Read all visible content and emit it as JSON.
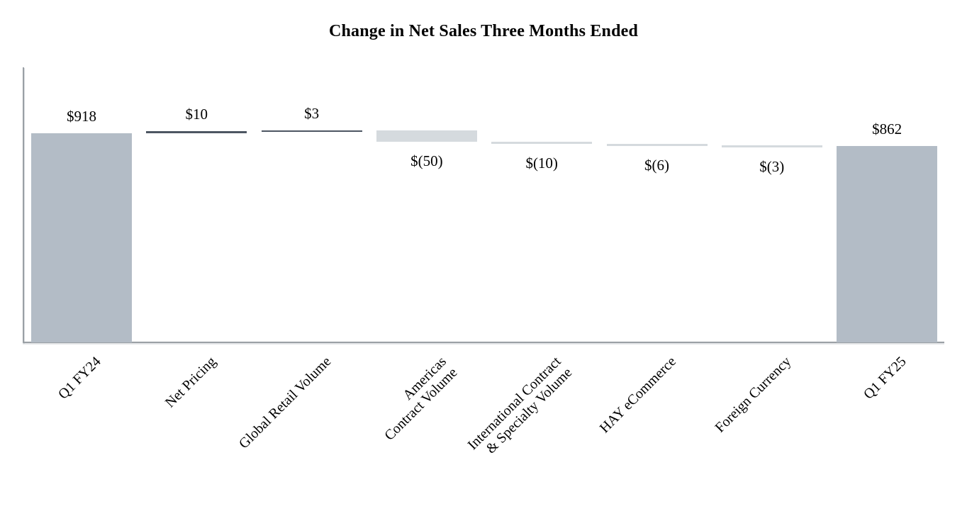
{
  "title": "Change in Net Sales Three Months Ended",
  "colors": {
    "total_bar": "#b3bcc6",
    "increase_bar": "#4d5662",
    "decrease_bar": "#d5dade",
    "axis": "#9aa0a5",
    "text": "#000000"
  },
  "chart_data": {
    "type": "waterfall",
    "title": "Change in Net Sales Three Months Ended",
    "categories": [
      "Q1 FY24",
      "Net Pricing",
      "Global Retail Volume",
      "Americas Contract Volume",
      "International Contract & Specialty Volume",
      "HAY eCommerce",
      "Foreign Currency",
      "Q1 FY25"
    ],
    "bars": [
      {
        "category": "Q1 FY24",
        "category_lines": [
          "Q1 FY24"
        ],
        "value": 918,
        "label": "$918",
        "role": "total",
        "label_position": "above"
      },
      {
        "category": "Net Pricing",
        "category_lines": [
          "Net Pricing"
        ],
        "value": 10,
        "label": "$10",
        "role": "increase",
        "label_position": "above"
      },
      {
        "category": "Global Retail Volume",
        "category_lines": [
          "Global Retail Volume"
        ],
        "value": 3,
        "label": "$3",
        "role": "increase",
        "label_position": "above"
      },
      {
        "category": "Americas Contract Volume",
        "category_lines": [
          "Americas",
          "Contract Volume"
        ],
        "value": -50,
        "label": "$(50)",
        "role": "decrease",
        "label_position": "below"
      },
      {
        "category": "International Contract & Specialty Volume",
        "category_lines": [
          "International Contract",
          "& Specialty Volume"
        ],
        "value": -10,
        "label": "$(10)",
        "role": "decrease",
        "label_position": "below"
      },
      {
        "category": "HAY eCommerce",
        "category_lines": [
          "HAY eCommerce"
        ],
        "value": -6,
        "label": "$(6)",
        "role": "decrease",
        "label_position": "below"
      },
      {
        "category": "Foreign Currency",
        "category_lines": [
          "Foreign Currency"
        ],
        "value": -3,
        "label": "$(3)",
        "role": "decrease",
        "label_position": "below"
      },
      {
        "category": "Q1 FY25",
        "category_lines": [
          "Q1 FY25"
        ],
        "value": 862,
        "label": "$862",
        "role": "total",
        "label_position": "above"
      }
    ],
    "layout_hints": {
      "gridlines": false,
      "value_axis_tick_labels": false,
      "category_label_rotation_deg": 45,
      "legend": "none",
      "value_labels": "outside-end"
    }
  }
}
